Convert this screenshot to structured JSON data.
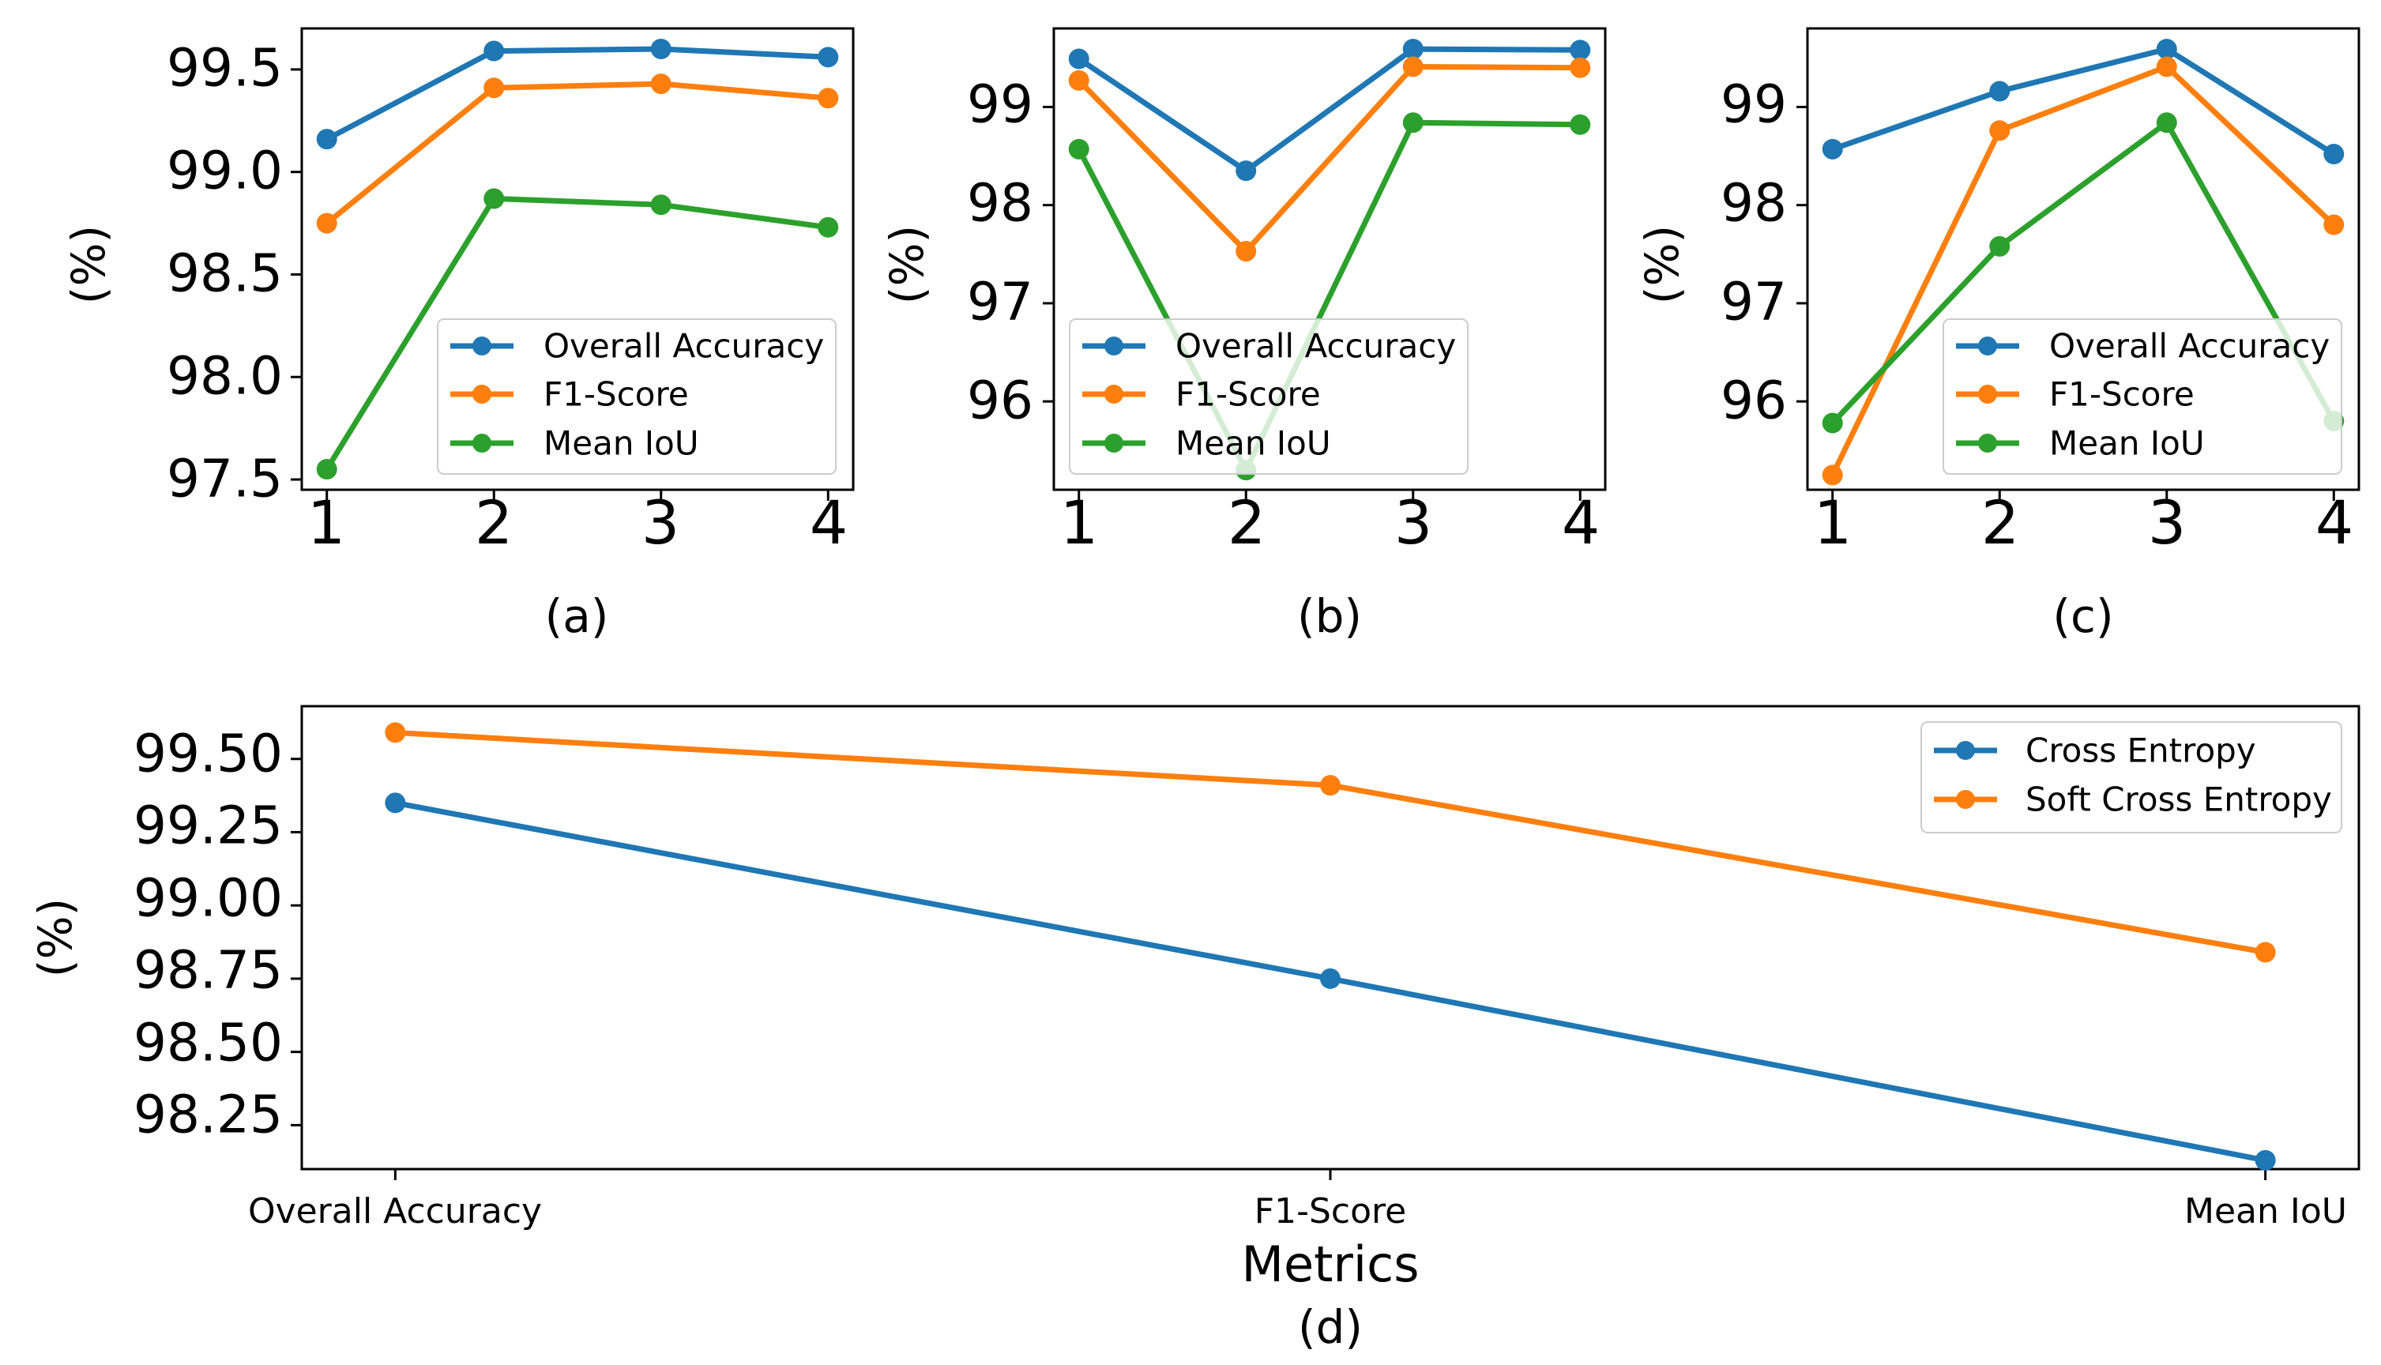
{
  "colors": {
    "overall_accuracy": "#1f77b4",
    "f1_score": "#ff7f0e",
    "mean_iou": "#2ca02c",
    "cross_entropy": "#1f77b4",
    "soft_cross_entropy": "#ff7f0e",
    "axis": "#000000",
    "legend_border": "#cccccc"
  },
  "chart_data": [
    {
      "id": "a",
      "type": "line",
      "caption": "(a)",
      "ylabel": "(%)",
      "xlabel": "",
      "x": [
        1,
        2,
        3,
        4
      ],
      "x_tick_labels": [
        "1",
        "2",
        "3",
        "4"
      ],
      "xlim": [
        0.85,
        4.15
      ],
      "ylim": [
        97.45,
        99.7
      ],
      "y_ticks": [
        97.5,
        98.0,
        98.5,
        99.0,
        99.5
      ],
      "y_tick_labels": [
        "97.5",
        "98.0",
        "98.5",
        "99.0",
        "99.5"
      ],
      "grid": false,
      "legend_position": "lower-right",
      "series": [
        {
          "name": "Overall Accuracy",
          "color_key": "overall_accuracy",
          "values": [
            99.16,
            99.59,
            99.6,
            99.56
          ]
        },
        {
          "name": "F1-Score",
          "color_key": "f1_score",
          "values": [
            98.75,
            99.41,
            99.43,
            99.36
          ]
        },
        {
          "name": "Mean IoU",
          "color_key": "mean_iou",
          "values": [
            97.55,
            98.87,
            98.84,
            98.73
          ]
        }
      ]
    },
    {
      "id": "b",
      "type": "line",
      "caption": "(b)",
      "ylabel": "(%)",
      "xlabel": "",
      "x": [
        1,
        2,
        3,
        4
      ],
      "x_tick_labels": [
        "1",
        "2",
        "3",
        "4"
      ],
      "xlim": [
        0.85,
        4.15
      ],
      "ylim": [
        95.1,
        99.8
      ],
      "y_ticks": [
        96,
        97,
        98,
        99
      ],
      "y_tick_labels": [
        "96",
        "97",
        "98",
        "99"
      ],
      "grid": false,
      "legend_position": "lower-right",
      "series": [
        {
          "name": "Overall Accuracy",
          "color_key": "overall_accuracy",
          "values": [
            99.49,
            98.35,
            99.59,
            99.58
          ]
        },
        {
          "name": "F1-Score",
          "color_key": "f1_score",
          "values": [
            99.27,
            97.53,
            99.41,
            99.4
          ]
        },
        {
          "name": "Mean IoU",
          "color_key": "mean_iou",
          "values": [
            98.57,
            95.3,
            98.84,
            98.82
          ]
        }
      ]
    },
    {
      "id": "c",
      "type": "line",
      "caption": "(c)",
      "ylabel": "(%)",
      "xlabel": "",
      "x": [
        1,
        2,
        3,
        4
      ],
      "x_tick_labels": [
        "1",
        "2",
        "3",
        "4"
      ],
      "xlim": [
        0.85,
        4.15
      ],
      "ylim": [
        95.1,
        99.8
      ],
      "y_ticks": [
        96,
        97,
        98,
        99
      ],
      "y_tick_labels": [
        "96",
        "97",
        "98",
        "99"
      ],
      "grid": false,
      "legend_position": "lower-right",
      "series": [
        {
          "name": "Overall Accuracy",
          "color_key": "overall_accuracy",
          "values": [
            98.57,
            99.16,
            99.59,
            98.52
          ]
        },
        {
          "name": "F1-Score",
          "color_key": "f1_score",
          "values": [
            95.25,
            98.76,
            99.41,
            97.8
          ]
        },
        {
          "name": "Mean IoU",
          "color_key": "mean_iou",
          "values": [
            95.78,
            97.58,
            98.84,
            95.8
          ]
        }
      ]
    },
    {
      "id": "d",
      "type": "line",
      "caption": "(d)",
      "ylabel": "(%)",
      "xlabel": "Metrics",
      "x": [
        0,
        1,
        2
      ],
      "x_tick_labels": [
        "Overall Accuracy",
        "F1-Score",
        "Mean IoU"
      ],
      "xlim": [
        -0.1,
        2.1
      ],
      "ylim": [
        98.1,
        99.68
      ],
      "y_ticks": [
        98.25,
        98.5,
        98.75,
        99.0,
        99.25,
        99.5
      ],
      "y_tick_labels": [
        "98.25",
        "98.50",
        "98.75",
        "99.00",
        "99.25",
        "99.50"
      ],
      "grid": false,
      "legend_position": "top-right",
      "series": [
        {
          "name": "Cross Entropy",
          "color_key": "cross_entropy",
          "values": [
            99.35,
            98.75,
            98.13
          ]
        },
        {
          "name": "Soft Cross Entropy",
          "color_key": "soft_cross_entropy",
          "values": [
            99.59,
            99.41,
            98.84
          ]
        }
      ]
    }
  ]
}
